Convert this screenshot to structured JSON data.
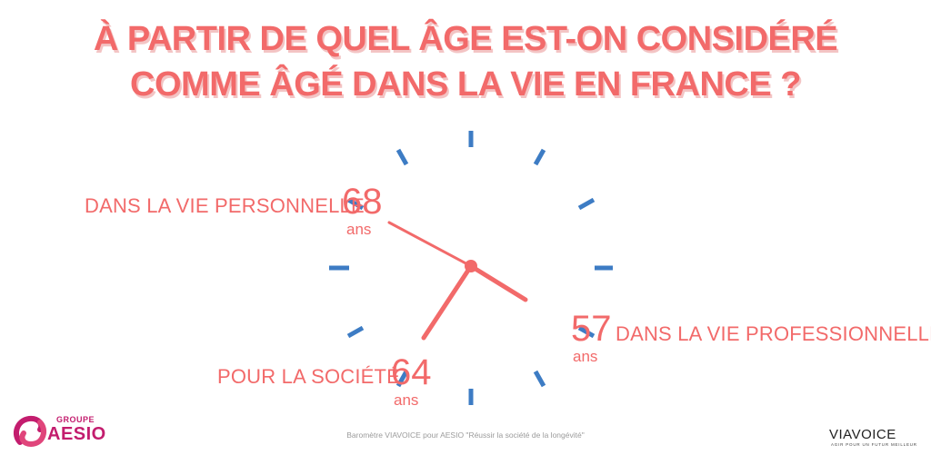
{
  "title": {
    "line1": "À PARTIR DE QUEL ÂGE EST-ON CONSIDÉRÉ",
    "line2": "COMME ÂGÉ DANS LA VIE EN FRANCE ?"
  },
  "items": [
    {
      "label": "DANS LA VIE PERSONNELLE",
      "value": "68",
      "unit": "ans"
    },
    {
      "label": "DANS LA VIE PROFESSIONNELLE",
      "value": "57",
      "unit": "ans"
    },
    {
      "label": "POUR LA SOCIÉTÉ",
      "value": "64",
      "unit": "ans"
    }
  ],
  "footer": "Baromètre VIAVOICE pour AESIO \"Réussir la société de la longévité\"",
  "logos": {
    "aesio": {
      "groupe": "GROUPE",
      "name": "AESIO"
    },
    "viavoice": {
      "name": "VIAVOICE",
      "tagline": "AGIR POUR UN FUTUR MEILLEUR"
    }
  },
  "colors": {
    "accent": "#f26a6a",
    "ticks": "#3d7cc4",
    "aesio": "#c31d6e"
  }
}
